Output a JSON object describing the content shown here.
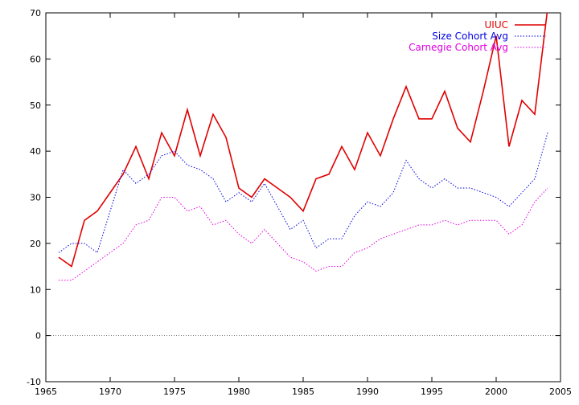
{
  "chart_data": {
    "type": "line",
    "xlim": [
      1965,
      2005
    ],
    "ylim": [
      -10,
      70
    ],
    "x_ticks": [
      1965,
      1970,
      1975,
      1980,
      1985,
      1990,
      1995,
      2000,
      2005
    ],
    "y_ticks": [
      -10,
      0,
      10,
      20,
      30,
      40,
      50,
      60,
      70
    ],
    "grid": false,
    "legend_position": "top-right",
    "x": [
      1966,
      1967,
      1968,
      1969,
      1970,
      1971,
      1972,
      1973,
      1974,
      1975,
      1976,
      1977,
      1978,
      1979,
      1980,
      1981,
      1982,
      1983,
      1984,
      1985,
      1986,
      1987,
      1988,
      1989,
      1990,
      1991,
      1992,
      1993,
      1994,
      1995,
      1996,
      1997,
      1998,
      1999,
      2000,
      2001,
      2002,
      2003,
      2004
    ],
    "series": [
      {
        "name": "UIUC",
        "color": "#e00000",
        "style": "solid",
        "values": [
          17,
          15,
          25,
          27,
          31,
          35,
          41,
          34,
          44,
          39,
          49,
          39,
          48,
          43,
          32,
          30,
          34,
          32,
          30,
          27,
          34,
          35,
          41,
          36,
          44,
          39,
          47,
          54,
          47,
          47,
          53,
          45,
          42,
          53,
          65,
          41,
          51,
          48,
          71
        ]
      },
      {
        "name": "Size Cohort Avg",
        "color": "#0000e0",
        "style": "dotted",
        "values": [
          18,
          20,
          20,
          18,
          27,
          36,
          33,
          35,
          39,
          40,
          37,
          36,
          34,
          29,
          31,
          29,
          33,
          28,
          23,
          25,
          19,
          21,
          21,
          26,
          29,
          28,
          31,
          38,
          34,
          32,
          34,
          32,
          32,
          31,
          30,
          28,
          31,
          34,
          44
        ]
      },
      {
        "name": "Carnegie Cohort Avg",
        "color": "#e000e0",
        "style": "dotted",
        "values": [
          12,
          12,
          14,
          16,
          18,
          20,
          24,
          25,
          30,
          30,
          27,
          28,
          24,
          25,
          22,
          20,
          23,
          20,
          17,
          16,
          14,
          15,
          15,
          18,
          19,
          21,
          22,
          23,
          24,
          24,
          25,
          24,
          25,
          25,
          25,
          22,
          24,
          29,
          32
        ]
      }
    ]
  }
}
